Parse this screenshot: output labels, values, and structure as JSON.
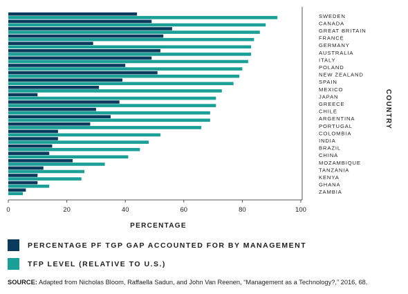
{
  "chart_data": {
    "type": "bar",
    "orientation": "horizontal",
    "categories": [
      "SWEDEN",
      "CANADA",
      "GREAT BRITAIN",
      "FRANCE",
      "GERMANY",
      "AUSTRALIA",
      "ITALY",
      "POLAND",
      "NEW ZEALAND",
      "SPAIN",
      "MEXICO",
      "JAPAN",
      "GREECE",
      "CHILE",
      "ARGENTINA",
      "PORTUGAL",
      "COLOMBIA",
      "INDIA",
      "BRAZIL",
      "CHINA",
      "MOZAMBIQUE",
      "TANZANIA",
      "KENYA",
      "GHANA",
      "ZAMBIA"
    ],
    "series": [
      {
        "name": "PERCENTAGE PF TGP GAP ACCOUNTED FOR BY MANAGEMENT",
        "color": "#0b3b5c",
        "values": [
          44,
          49,
          56,
          53,
          29,
          52,
          49,
          40,
          51,
          39,
          31,
          10,
          38,
          30,
          35,
          28,
          17,
          17,
          15,
          14,
          22,
          12,
          10,
          10,
          6
        ]
      },
      {
        "name": "TFP LEVEL (RELATIVE TO U.S.)",
        "color": "#1aa096",
        "values": [
          92,
          88,
          86,
          84,
          83,
          83,
          82,
          80,
          79,
          77,
          73,
          71,
          71,
          69,
          69,
          66,
          52,
          48,
          45,
          41,
          33,
          26,
          25,
          14,
          5
        ]
      }
    ],
    "xlabel": "PERCENTAGE",
    "ylabel": "COUNTRY",
    "xlim": [
      0,
      100
    ],
    "xticks": [
      0,
      20,
      40,
      60,
      80,
      100
    ],
    "legend_position": "bottom-left",
    "grid": false
  },
  "source": {
    "label": "SOURCE:",
    "text": " Adapted from Nicholas Bloom, Raffaella Sadun, and John Van Reenen, “Management as a Technology?,” 2016, 68."
  }
}
